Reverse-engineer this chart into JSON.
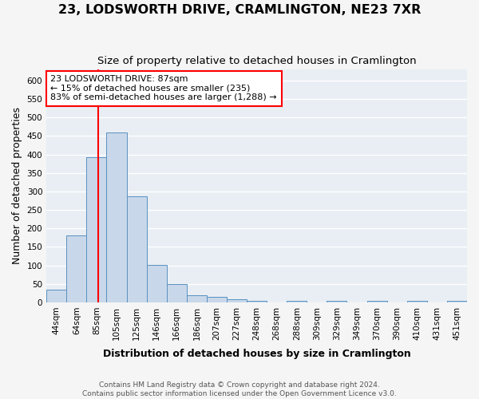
{
  "title": "23, LODSWORTH DRIVE, CRAMLINGTON, NE23 7XR",
  "subtitle": "Size of property relative to detached houses in Cramlington",
  "xlabel": "Distribution of detached houses by size in Cramlington",
  "ylabel": "Number of detached properties",
  "bar_labels": [
    "44sqm",
    "64sqm",
    "85sqm",
    "105sqm",
    "125sqm",
    "146sqm",
    "166sqm",
    "186sqm",
    "207sqm",
    "227sqm",
    "248sqm",
    "268sqm",
    "288sqm",
    "309sqm",
    "329sqm",
    "349sqm",
    "370sqm",
    "390sqm",
    "410sqm",
    "431sqm",
    "451sqm"
  ],
  "bar_values": [
    35,
    181,
    392,
    460,
    287,
    102,
    49,
    20,
    14,
    9,
    5,
    0,
    5,
    0,
    5,
    0,
    5,
    0,
    5,
    0,
    5
  ],
  "bar_color": "#c8d8ea",
  "bar_edge_color": "#5a90c0",
  "ylim_max": 630,
  "yticks": [
    0,
    50,
    100,
    150,
    200,
    250,
    300,
    350,
    400,
    450,
    500,
    550,
    600
  ],
  "annotation_line1": "23 LODSWORTH DRIVE: 87sqm",
  "annotation_line2": "← 15% of detached houses are smaller (235)",
  "annotation_line3": "83% of semi-detached houses are larger (1,288) →",
  "footer_line1": "Contains HM Land Registry data © Crown copyright and database right 2024.",
  "footer_line2": "Contains public sector information licensed under the Open Government Licence v3.0.",
  "plot_bg_color": "#e8eef4",
  "fig_bg_color": "#f5f5f5",
  "grid_color": "#ffffff",
  "title_fontsize": 11.5,
  "subtitle_fontsize": 9.5,
  "xlabel_fontsize": 9,
  "ylabel_fontsize": 9,
  "tick_fontsize": 7.5,
  "annotation_fontsize": 8,
  "footer_fontsize": 6.5
}
